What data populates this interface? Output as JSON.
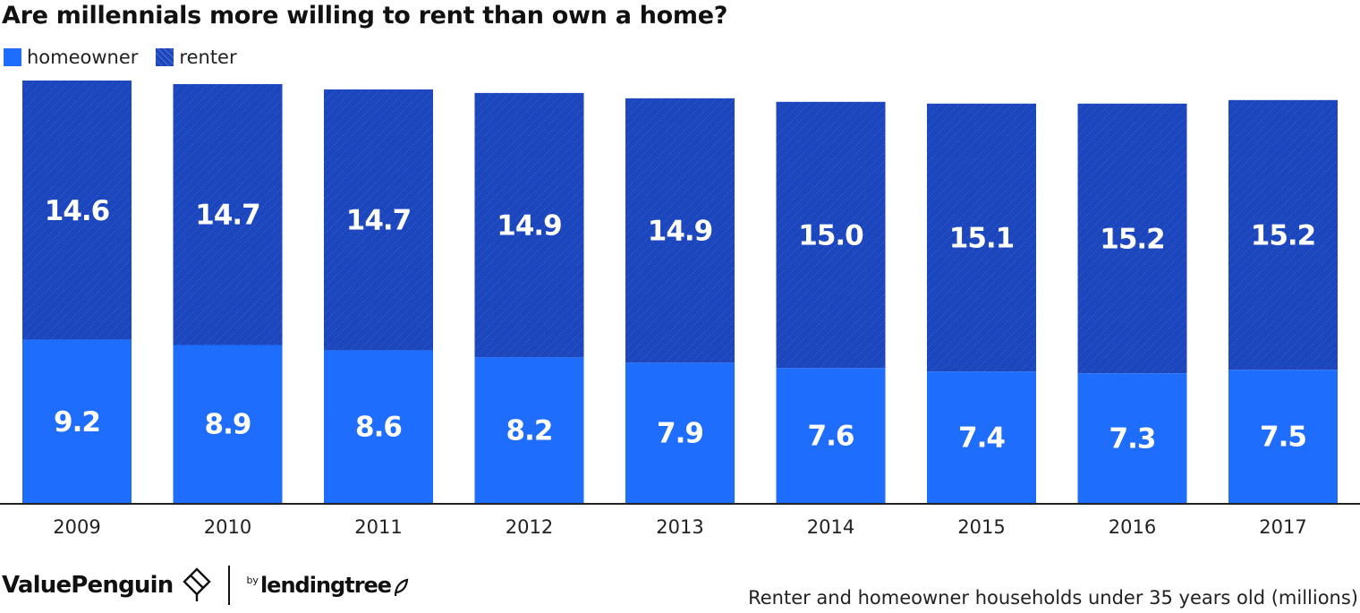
{
  "chart_data": {
    "type": "bar",
    "stacked": true,
    "title": "Are millennials more willing to rent than own a home?",
    "categories": [
      "2009",
      "2010",
      "2011",
      "2012",
      "2013",
      "2014",
      "2015",
      "2016",
      "2017"
    ],
    "series": [
      {
        "name": "homeowner",
        "color": "#1f6dfc",
        "values": [
          9.2,
          8.9,
          8.6,
          8.2,
          7.9,
          7.6,
          7.4,
          7.3,
          7.5
        ],
        "labels": [
          "9.2",
          "8.9",
          "8.6",
          "8.2",
          "7.9",
          "7.6",
          "7.4",
          "7.3",
          "7.5"
        ]
      },
      {
        "name": "renter",
        "color": "#1c46bd",
        "pattern": "diagonal-hatch",
        "values": [
          14.6,
          14.7,
          14.7,
          14.9,
          14.9,
          15.0,
          15.1,
          15.2,
          15.2
        ],
        "labels": [
          "14.6",
          "14.7",
          "14.7",
          "14.9",
          "14.9",
          "15.0",
          "15.1",
          "15.2",
          "15.2"
        ]
      }
    ],
    "ylim": [
      0,
      23.8
    ],
    "grid": false,
    "legend": "top-left",
    "note": "Renter and homeowner households under 35 years old (millions)"
  },
  "footer": {
    "brand": "ValuePenguin",
    "partner_by": "by",
    "partner": "lendingtree"
  }
}
